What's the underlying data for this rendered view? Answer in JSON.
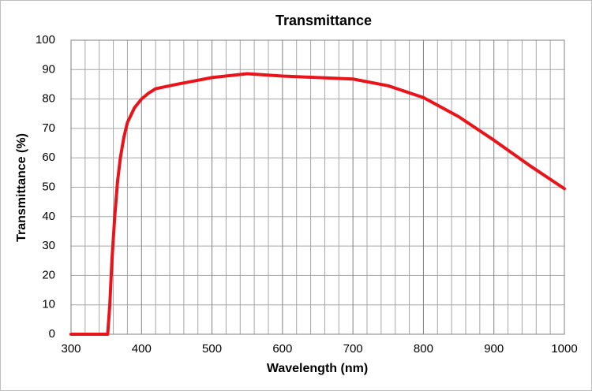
{
  "chart_data": {
    "type": "line",
    "title": "Transmittance",
    "x_label": "Wavelength (nm)",
    "y_label": "Transmittance (%)",
    "x": [
      300,
      350,
      352,
      355,
      358,
      362,
      366,
      370,
      375,
      380,
      390,
      400,
      410,
      420,
      450,
      500,
      550,
      600,
      650,
      700,
      750,
      800,
      850,
      900,
      950,
      1000
    ],
    "series": [
      {
        "name": "Transmittance",
        "color": "#e8141a",
        "values": [
          0,
          0,
          0,
          10,
          25,
          40,
          52,
          60,
          67,
          72,
          77,
          80,
          82,
          83.5,
          85,
          87.3,
          88.6,
          87.8,
          87.3,
          86.8,
          84.5,
          80.5,
          74,
          66,
          57.5,
          49.5
        ]
      }
    ],
    "xlim": [
      300,
      1000
    ],
    "xticks": [
      300,
      400,
      500,
      600,
      700,
      800,
      900,
      1000
    ],
    "x_minor_grid": [
      320,
      340,
      360,
      380,
      420,
      440,
      460,
      480,
      520,
      540,
      560,
      580,
      620,
      640,
      660,
      680,
      720,
      740,
      760,
      780,
      820,
      840,
      860,
      880,
      920,
      940,
      960,
      980
    ],
    "ylim": [
      0,
      100
    ],
    "yticks": [
      0,
      10,
      20,
      30,
      40,
      50,
      60,
      70,
      80,
      90,
      100
    ],
    "grid": true
  }
}
